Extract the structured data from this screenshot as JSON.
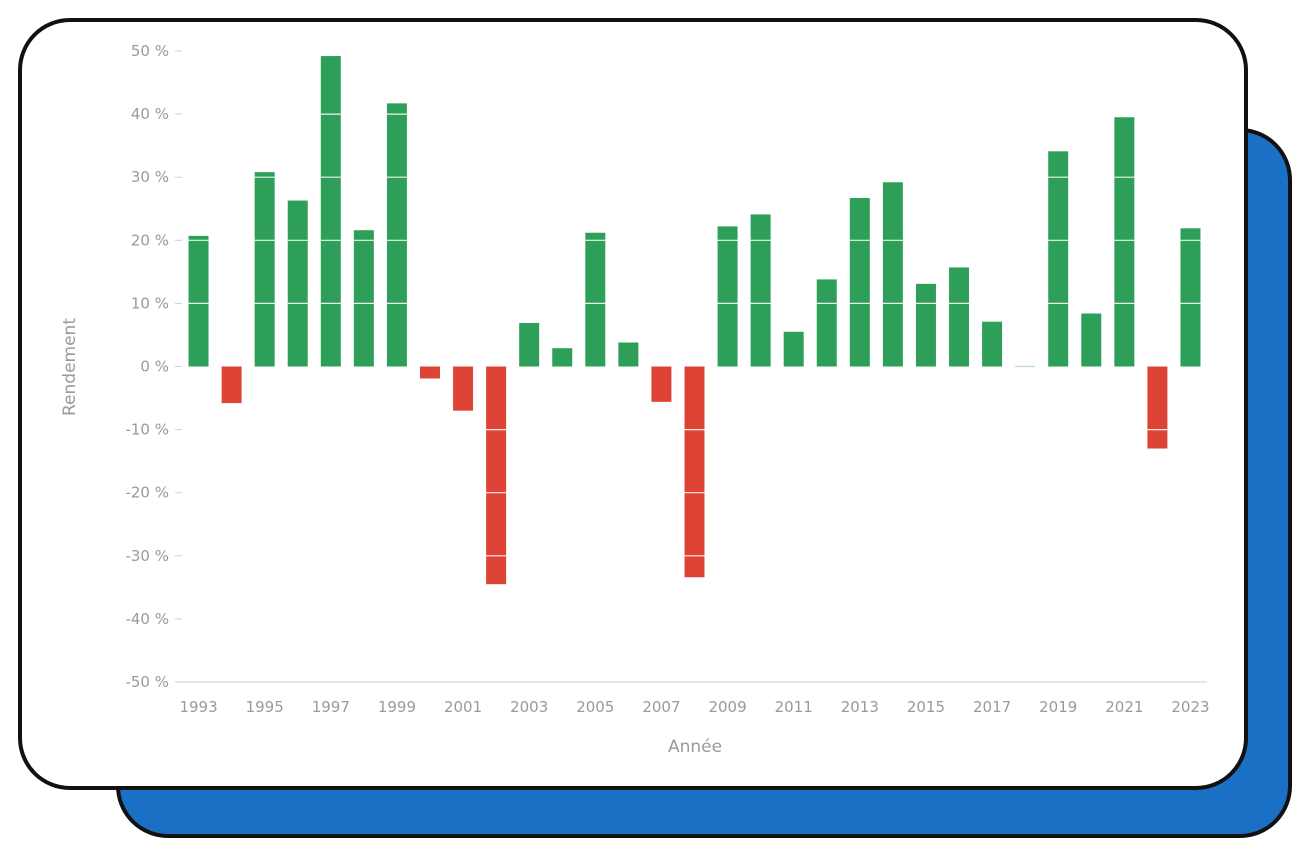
{
  "colors": {
    "positive": "#2e9f58",
    "negative": "#de4436",
    "back_card": "#1a70c4",
    "axis": "#cfcfcf",
    "label": "#9a9a9a"
  },
  "chart_data": {
    "type": "bar",
    "xlabel": "Année",
    "ylabel": "Rendement",
    "ylim": [
      -50,
      50
    ],
    "y_ticks": [
      50,
      40,
      30,
      20,
      10,
      0,
      -10,
      -20,
      -30,
      -40,
      -50
    ],
    "y_tick_labels": [
      "50 %",
      "40 %",
      "30 %",
      "20 %",
      "10 %",
      "0 %",
      "-10 %",
      "-20 %",
      "-30 %",
      "-40 %",
      "-50 %"
    ],
    "x_tick_labels": [
      "1993",
      "1995",
      "1997",
      "1999",
      "2001",
      "2003",
      "2005",
      "2007",
      "2009",
      "2011",
      "2013",
      "2015",
      "2017",
      "2019",
      "2021",
      "2023"
    ],
    "categories": [
      "1993",
      "1994",
      "1995",
      "1996",
      "1997",
      "1998",
      "1999",
      "2000",
      "2001",
      "2002",
      "2003",
      "2004",
      "2005",
      "2006",
      "2007",
      "2008",
      "2009",
      "2010",
      "2011",
      "2012",
      "2013",
      "2014",
      "2015",
      "2016",
      "2017",
      "2018",
      "2019",
      "2020",
      "2021",
      "2022",
      "2023"
    ],
    "values": [
      20.7,
      -5.8,
      30.8,
      26.3,
      49.2,
      21.6,
      41.7,
      -1.9,
      -7.0,
      -34.5,
      6.9,
      2.9,
      21.2,
      3.8,
      -5.6,
      -33.4,
      22.2,
      24.1,
      5.5,
      13.8,
      26.7,
      29.2,
      13.1,
      15.7,
      7.1,
      0.1,
      34.1,
      8.4,
      39.5,
      -13.0,
      21.9
    ],
    "grid": "inside bars only",
    "legend": "none"
  }
}
